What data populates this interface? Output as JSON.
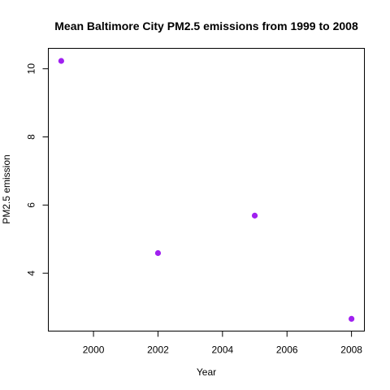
{
  "chart_data": {
    "type": "scatter",
    "title": "Mean Baltimore City PM2.5 emissions from 1999 to 2008",
    "xlabel": "Year",
    "ylabel": "PM2.5 emission",
    "xlim": [
      1998.6,
      2008.4
    ],
    "ylim": [
      2.3,
      10.6
    ],
    "x_ticks": [
      2000,
      2002,
      2004,
      2006,
      2008
    ],
    "y_ticks": [
      4,
      6,
      8,
      10
    ],
    "series": [
      {
        "x": [
          1999,
          2002,
          2005,
          2008
        ],
        "y": [
          10.23,
          4.59,
          5.69,
          2.66
        ],
        "color": "#A020F0"
      }
    ],
    "grid": false,
    "legend": "none"
  }
}
